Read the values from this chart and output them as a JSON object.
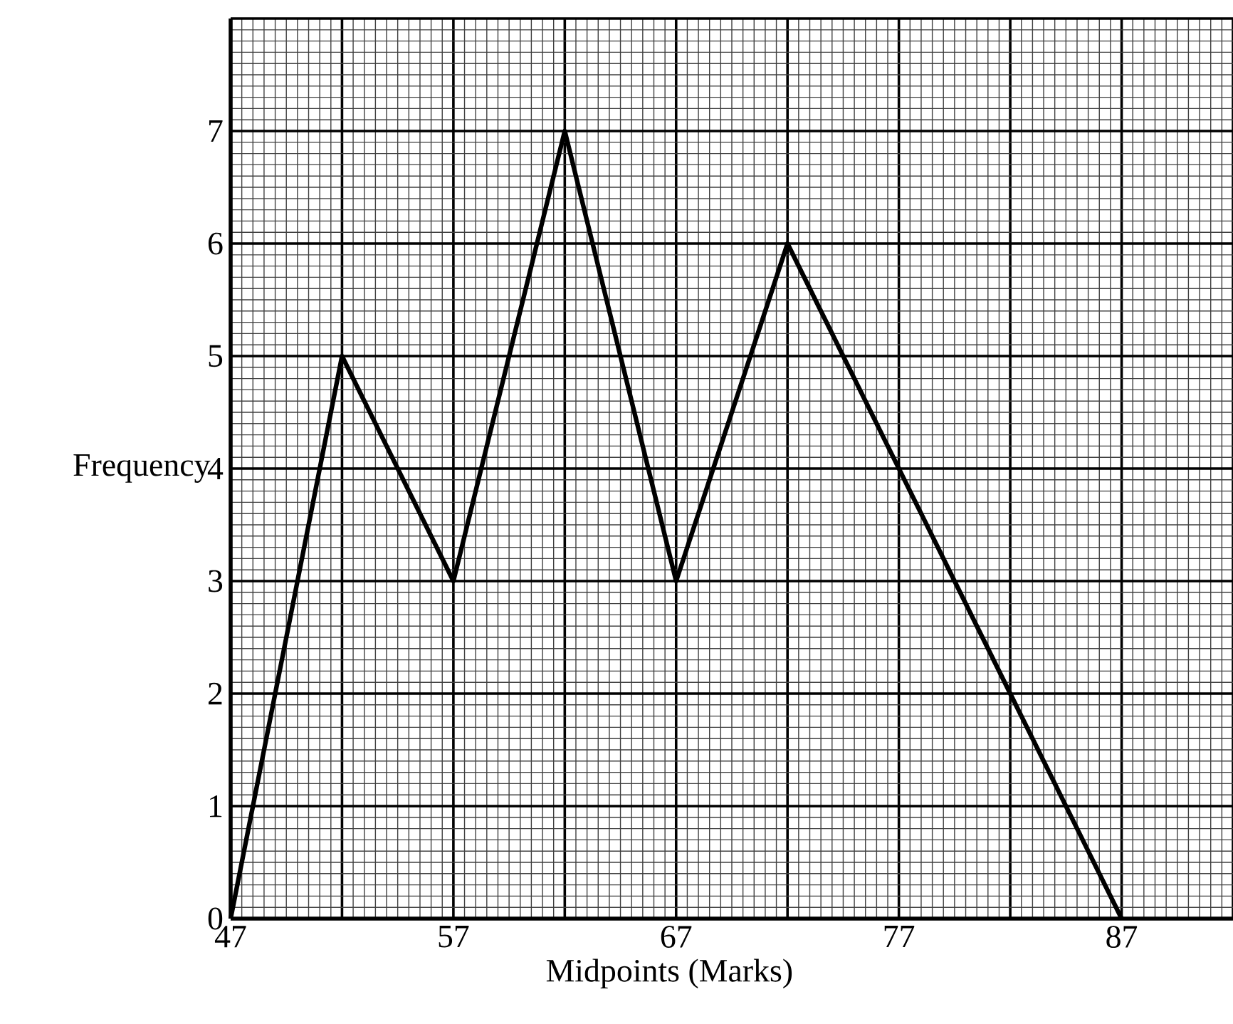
{
  "chart_data": {
    "type": "line",
    "xlabel": "Midpoints (Marks)",
    "ylabel": "Frequency",
    "x": [
      47,
      52,
      57,
      62,
      67,
      72,
      77,
      82,
      87
    ],
    "values": [
      0,
      5,
      3,
      7,
      3,
      6,
      4,
      2,
      0
    ],
    "color": "#000000",
    "xlim": [
      47,
      92
    ],
    "ylim": [
      0,
      8
    ],
    "xticks": [
      47,
      {
        "value": 52,
        "label": null
      },
      57,
      {
        "value": 62,
        "label": null
      },
      67,
      {
        "value": 72,
        "label": null
      },
      77,
      {
        "value": 82,
        "label": null
      },
      87,
      {
        "value": 92,
        "label": null
      }
    ],
    "yticks": [
      0,
      1,
      2,
      3,
      4,
      5,
      6,
      7,
      {
        "value": 8,
        "label": null
      }
    ],
    "grid": true,
    "marker": "none",
    "line_style": "solid"
  }
}
